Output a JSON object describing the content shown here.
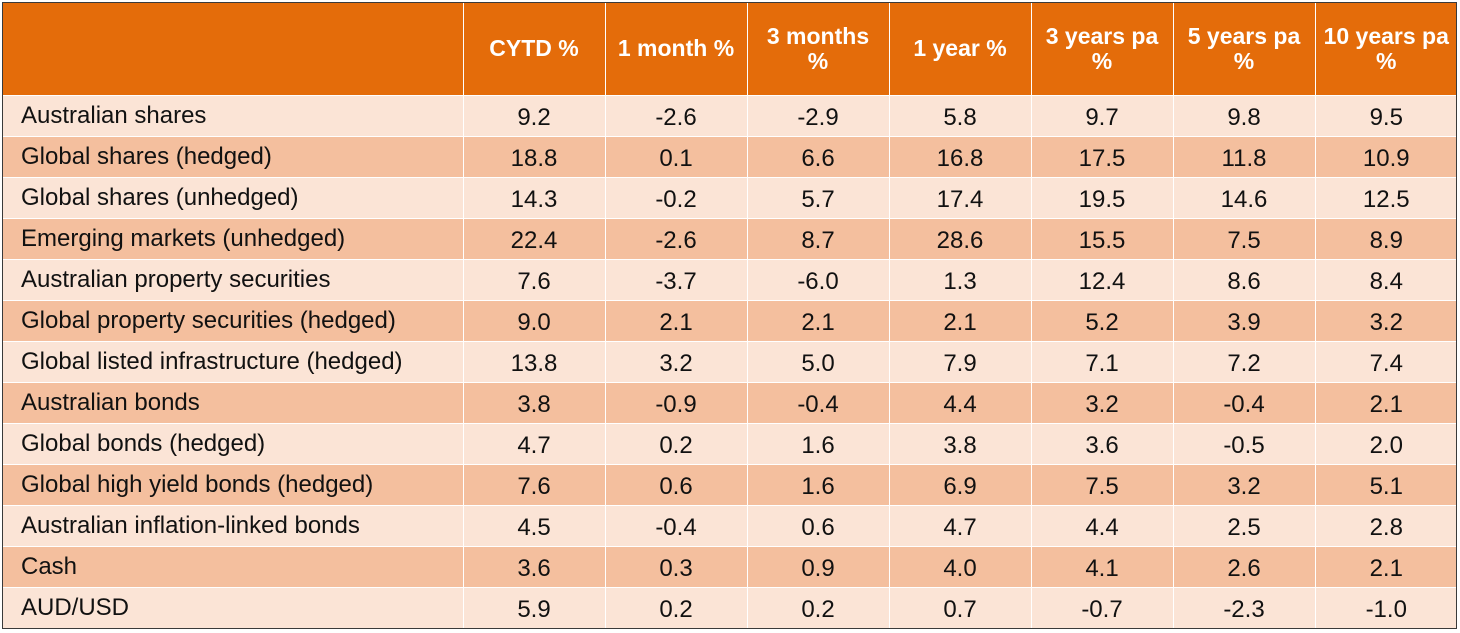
{
  "table": {
    "columns": [
      "",
      "CYTD %",
      "1 month %",
      "3 months %",
      "1 year %",
      "3 years pa %",
      "5 years pa %",
      "10 years pa %"
    ],
    "rows": [
      {
        "label": "Australian shares",
        "values": [
          "9.2",
          "-2.6",
          "-2.9",
          "5.8",
          "9.7",
          "9.8",
          "9.5"
        ]
      },
      {
        "label": "Global shares (hedged)",
        "values": [
          "18.8",
          "0.1",
          "6.6",
          "16.8",
          "17.5",
          "11.8",
          "10.9"
        ]
      },
      {
        "label": "Global shares (unhedged)",
        "values": [
          "14.3",
          "-0.2",
          "5.7",
          "17.4",
          "19.5",
          "14.6",
          "12.5"
        ]
      },
      {
        "label": "Emerging markets (unhedged)",
        "values": [
          "22.4",
          "-2.6",
          "8.7",
          "28.6",
          "15.5",
          "7.5",
          "8.9"
        ]
      },
      {
        "label": "Australian property securities",
        "values": [
          "7.6",
          "-3.7",
          "-6.0",
          "1.3",
          "12.4",
          "8.6",
          "8.4"
        ]
      },
      {
        "label": "Global property securities (hedged)",
        "values": [
          "9.0",
          "2.1",
          "2.1",
          "2.1",
          "5.2",
          "3.9",
          "3.2"
        ]
      },
      {
        "label": "Global listed infrastructure (hedged)",
        "values": [
          "13.8",
          "3.2",
          "5.0",
          "7.9",
          "7.1",
          "7.2",
          "7.4"
        ]
      },
      {
        "label": "Australian bonds",
        "values": [
          "3.8",
          "-0.9",
          "-0.4",
          "4.4",
          "3.2",
          "-0.4",
          "2.1"
        ]
      },
      {
        "label": "Global bonds (hedged)",
        "values": [
          "4.7",
          "0.2",
          "1.6",
          "3.8",
          "3.6",
          "-0.5",
          "2.0"
        ]
      },
      {
        "label": "Global high yield bonds (hedged)",
        "values": [
          "7.6",
          "0.6",
          "1.6",
          "6.9",
          "7.5",
          "3.2",
          "5.1"
        ]
      },
      {
        "label": "Australian inflation-linked bonds",
        "values": [
          "4.5",
          "-0.4",
          "0.6",
          "4.7",
          "4.4",
          "2.5",
          "2.8"
        ]
      },
      {
        "label": "Cash",
        "values": [
          "3.6",
          "0.3",
          "0.9",
          "4.0",
          "4.1",
          "2.6",
          "2.1"
        ]
      },
      {
        "label": "AUD/USD",
        "values": [
          "5.9",
          "0.2",
          "0.2",
          "0.7",
          "-0.7",
          "-2.3",
          "-1.0"
        ]
      }
    ]
  },
  "colors": {
    "header": "#E46C0A",
    "row_light": "#FBE4D6",
    "row_dark": "#F4BF9E"
  }
}
